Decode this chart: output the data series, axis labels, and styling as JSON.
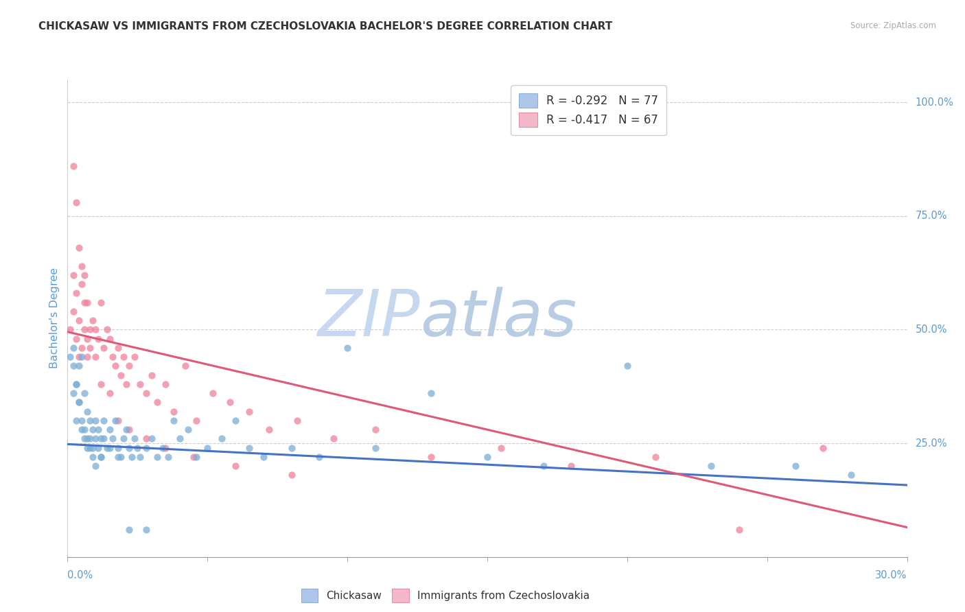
{
  "title": "CHICKASAW VS IMMIGRANTS FROM CZECHOSLOVAKIA BACHELOR'S DEGREE CORRELATION CHART",
  "source": "Source: ZipAtlas.com",
  "ylabel": "Bachelor's Degree",
  "legend1_label": "R = -0.292   N = 77",
  "legend2_label": "R = -0.417   N = 67",
  "legend1_color": "#aec6e8",
  "legend2_color": "#f4b8c8",
  "scatter1_color": "#7aadd4",
  "scatter2_color": "#f08098",
  "line1_color": "#4472c4",
  "line2_color": "#e05878",
  "watermark_zip": "ZIP",
  "watermark_atlas": "atlas",
  "watermark_color_zip": "#c5d8ef",
  "watermark_color_atlas": "#b8cce4",
  "title_fontsize": 11,
  "tick_label_color": "#5b9bd5",
  "ylabel_color": "#5b9bd5",
  "background_color": "#ffffff",
  "xlim": [
    0.0,
    0.3
  ],
  "ylim": [
    0.0,
    1.05
  ],
  "blue_line_y0": 0.248,
  "blue_line_y1": 0.158,
  "pink_line_y0": 0.495,
  "pink_line_y1": 0.065,
  "chickasaw_x": [
    0.001,
    0.002,
    0.002,
    0.003,
    0.003,
    0.004,
    0.004,
    0.005,
    0.005,
    0.006,
    0.006,
    0.007,
    0.007,
    0.008,
    0.008,
    0.009,
    0.009,
    0.01,
    0.01,
    0.011,
    0.011,
    0.012,
    0.012,
    0.013,
    0.013,
    0.014,
    0.015,
    0.016,
    0.017,
    0.018,
    0.019,
    0.02,
    0.021,
    0.022,
    0.023,
    0.024,
    0.025,
    0.026,
    0.028,
    0.03,
    0.032,
    0.034,
    0.036,
    0.038,
    0.04,
    0.043,
    0.046,
    0.05,
    0.055,
    0.06,
    0.065,
    0.07,
    0.08,
    0.09,
    0.1,
    0.11,
    0.13,
    0.15,
    0.17,
    0.2,
    0.23,
    0.26,
    0.28,
    0.002,
    0.003,
    0.004,
    0.005,
    0.006,
    0.007,
    0.008,
    0.009,
    0.01,
    0.012,
    0.015,
    0.018,
    0.022,
    0.028
  ],
  "chickasaw_y": [
    0.44,
    0.46,
    0.36,
    0.38,
    0.3,
    0.42,
    0.34,
    0.44,
    0.28,
    0.36,
    0.26,
    0.32,
    0.24,
    0.3,
    0.26,
    0.28,
    0.24,
    0.26,
    0.3,
    0.28,
    0.24,
    0.26,
    0.22,
    0.3,
    0.26,
    0.24,
    0.28,
    0.26,
    0.3,
    0.24,
    0.22,
    0.26,
    0.28,
    0.24,
    0.22,
    0.26,
    0.24,
    0.22,
    0.24,
    0.26,
    0.22,
    0.24,
    0.22,
    0.3,
    0.26,
    0.28,
    0.22,
    0.24,
    0.26,
    0.3,
    0.24,
    0.22,
    0.24,
    0.22,
    0.46,
    0.24,
    0.36,
    0.22,
    0.2,
    0.42,
    0.2,
    0.2,
    0.18,
    0.42,
    0.38,
    0.34,
    0.3,
    0.28,
    0.26,
    0.24,
    0.22,
    0.2,
    0.22,
    0.24,
    0.22,
    0.06,
    0.06
  ],
  "czech_x": [
    0.001,
    0.002,
    0.002,
    0.003,
    0.003,
    0.004,
    0.004,
    0.005,
    0.005,
    0.006,
    0.006,
    0.007,
    0.007,
    0.008,
    0.009,
    0.01,
    0.011,
    0.012,
    0.013,
    0.014,
    0.015,
    0.016,
    0.017,
    0.018,
    0.019,
    0.02,
    0.021,
    0.022,
    0.024,
    0.026,
    0.028,
    0.03,
    0.032,
    0.035,
    0.038,
    0.042,
    0.046,
    0.052,
    0.058,
    0.065,
    0.072,
    0.082,
    0.095,
    0.11,
    0.13,
    0.155,
    0.18,
    0.21,
    0.24,
    0.27,
    0.002,
    0.003,
    0.004,
    0.005,
    0.006,
    0.007,
    0.008,
    0.01,
    0.012,
    0.015,
    0.018,
    0.022,
    0.028,
    0.035,
    0.045,
    0.06,
    0.08
  ],
  "czech_y": [
    0.5,
    0.62,
    0.54,
    0.58,
    0.48,
    0.52,
    0.44,
    0.6,
    0.46,
    0.56,
    0.5,
    0.44,
    0.48,
    0.46,
    0.52,
    0.5,
    0.48,
    0.56,
    0.46,
    0.5,
    0.48,
    0.44,
    0.42,
    0.46,
    0.4,
    0.44,
    0.38,
    0.42,
    0.44,
    0.38,
    0.36,
    0.4,
    0.34,
    0.38,
    0.32,
    0.42,
    0.3,
    0.36,
    0.34,
    0.32,
    0.28,
    0.3,
    0.26,
    0.28,
    0.22,
    0.24,
    0.2,
    0.22,
    0.06,
    0.24,
    0.86,
    0.78,
    0.68,
    0.64,
    0.62,
    0.56,
    0.5,
    0.44,
    0.38,
    0.36,
    0.3,
    0.28,
    0.26,
    0.24,
    0.22,
    0.2,
    0.18
  ]
}
